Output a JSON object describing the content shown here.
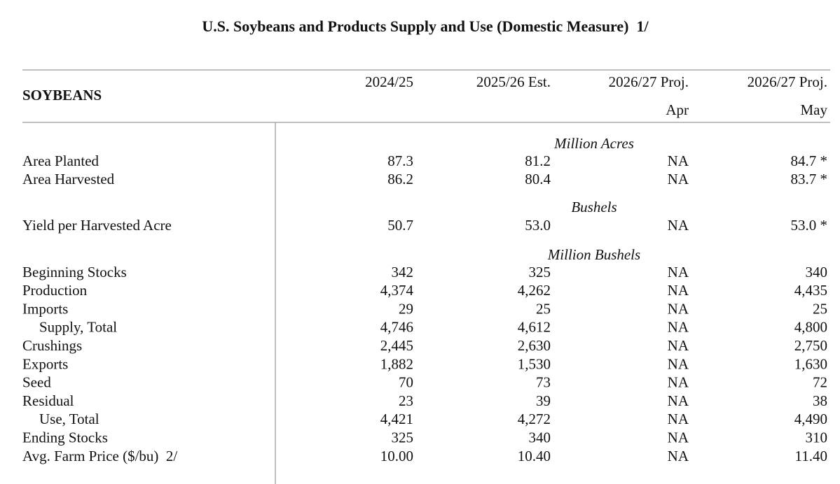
{
  "title": "U.S. Soybeans and Products Supply and Use (Domestic Measure)  1/",
  "header": {
    "section": "SOYBEANS",
    "columns": [
      {
        "label": "2024/25"
      },
      {
        "label": "2025/26 Est."
      },
      {
        "label": "2026/27 Proj.",
        "month": "Apr"
      },
      {
        "label": "2026/27 Proj.",
        "month": "May"
      }
    ]
  },
  "sections": [
    {
      "unit": "Million Acres",
      "rows": [
        {
          "label": "Area Planted",
          "values": [
            "87.3",
            "81.2",
            "NA",
            "84.7 *"
          ]
        },
        {
          "label": "Area Harvested",
          "values": [
            "86.2",
            "80.4",
            "NA",
            "83.7 *"
          ]
        }
      ]
    },
    {
      "unit": "Bushels",
      "rows": [
        {
          "label": "Yield per Harvested Acre",
          "values": [
            "50.7",
            "53.0",
            "NA",
            "53.0 *"
          ]
        }
      ]
    },
    {
      "unit": "Million Bushels",
      "rows": [
        {
          "label": "Beginning Stocks",
          "values": [
            "342",
            "325",
            "NA",
            "340"
          ]
        },
        {
          "label": "Production",
          "values": [
            "4,374",
            "4,262",
            "NA",
            "4,435"
          ]
        },
        {
          "label": "Imports",
          "values": [
            "29",
            "25",
            "NA",
            "25"
          ]
        },
        {
          "label": "Supply, Total",
          "indent": true,
          "values": [
            "4,746",
            "4,612",
            "NA",
            "4,800"
          ]
        },
        {
          "label": "Crushings",
          "values": [
            "2,445",
            "2,630",
            "NA",
            "2,750"
          ]
        },
        {
          "label": "Exports",
          "values": [
            "1,882",
            "1,530",
            "NA",
            "1,630"
          ]
        },
        {
          "label": "Seed",
          "values": [
            "70",
            "73",
            "NA",
            "72"
          ]
        },
        {
          "label": "Residual",
          "values": [
            "23",
            "39",
            "NA",
            "38"
          ]
        },
        {
          "label": "Use, Total",
          "indent": true,
          "values": [
            "4,421",
            "4,272",
            "NA",
            "4,490"
          ]
        },
        {
          "label": "Ending Stocks",
          "values": [
            "325",
            "340",
            "NA",
            "310"
          ]
        },
        {
          "label": "Avg. Farm Price ($/bu)  2/",
          "values": [
            "10.00",
            "10.40",
            "NA",
            "11.40"
          ]
        }
      ]
    }
  ]
}
